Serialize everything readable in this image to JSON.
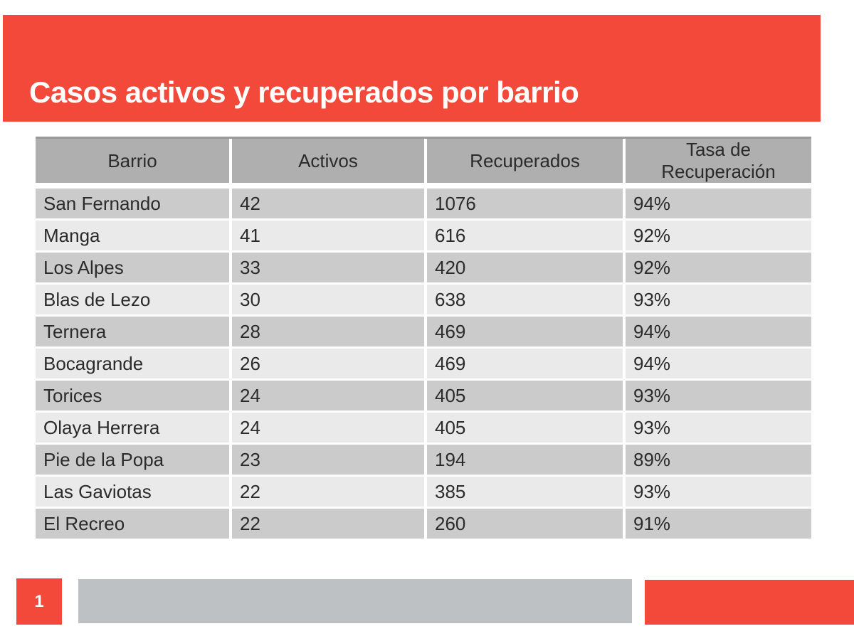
{
  "slide": {
    "title": "Casos activos y recuperados por barrio",
    "page_number": "1",
    "colors": {
      "accent_red": "#f2493a",
      "header_gray": "#afafaf",
      "row_dark": "#cbcbcb",
      "row_light": "#eaeaea",
      "footer_gray": "#bec1c4",
      "table_top_line": "#999999",
      "text_dark": "#2b2b2b",
      "title_white": "#ffffff"
    }
  },
  "table": {
    "columns": [
      "Barrio",
      "Activos",
      "Recuperados",
      "Tasa de Recuperación"
    ],
    "rows": [
      [
        "San Fernando",
        "42",
        "1076",
        "94%"
      ],
      [
        "Manga",
        "41",
        "616",
        "92%"
      ],
      [
        "Los Alpes",
        "33",
        "420",
        "92%"
      ],
      [
        "Blas de Lezo",
        "30",
        "638",
        "93%"
      ],
      [
        "Ternera",
        "28",
        "469",
        "94%"
      ],
      [
        "Bocagrande",
        "26",
        "469",
        "94%"
      ],
      [
        "Torices",
        "24",
        "405",
        "93%"
      ],
      [
        "Olaya Herrera",
        "24",
        "405",
        "93%"
      ],
      [
        "Pie de la Popa",
        "23",
        "194",
        "89%"
      ],
      [
        "Las Gaviotas",
        "22",
        "385",
        "93%"
      ],
      [
        "El Recreo",
        "22",
        "260",
        "91%"
      ]
    ]
  }
}
